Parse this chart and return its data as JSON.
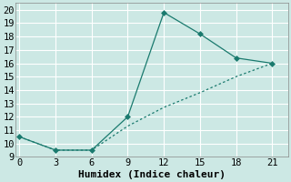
{
  "xlabel": "Humidex (Indice chaleur)",
  "bg_color": "#cce8e4",
  "grid_color": "#ffffff",
  "line_color": "#1a7a6e",
  "x_ticks": [
    0,
    3,
    6,
    9,
    12,
    15,
    18,
    21
  ],
  "ylim": [
    9,
    20.5
  ],
  "xlim": [
    -0.3,
    22.3
  ],
  "y_ticks": [
    9,
    10,
    11,
    12,
    13,
    14,
    15,
    16,
    17,
    18,
    19,
    20
  ],
  "line1_x": [
    0,
    3,
    6,
    9,
    12,
    15,
    18,
    21
  ],
  "line1_y": [
    10.5,
    9.5,
    9.5,
    12.0,
    19.8,
    18.2,
    16.4,
    16.0
  ],
  "line2_x": [
    0,
    3,
    6,
    9,
    12,
    15,
    18,
    21
  ],
  "line2_y": [
    10.5,
    9.5,
    9.5,
    11.3,
    12.7,
    13.8,
    15.0,
    16.0
  ],
  "marker_size": 3,
  "font_family": "monospace",
  "xlabel_fontsize": 8,
  "tick_fontsize": 7.5
}
